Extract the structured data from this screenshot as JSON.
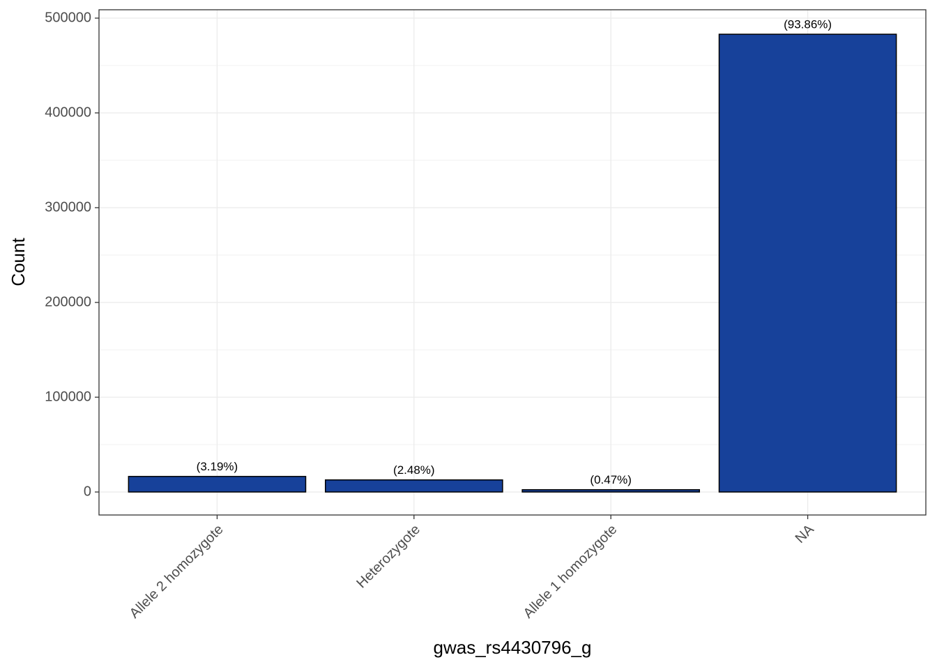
{
  "chart_data": {
    "type": "bar",
    "x_label": "gwas_rs4430796_g",
    "y_label": "Count",
    "categories": [
      "Allele 2 homozygote",
      "Heterozygote",
      "Allele 1 homozygote",
      "NA"
    ],
    "values": [
      16420,
      12760,
      2420,
      483000
    ],
    "labels": [
      "(3.19%)",
      "(2.48%)",
      "(0.47%)",
      "(93.86%)"
    ],
    "color": "#17419a",
    "ylim": [
      -24265,
      508824
    ],
    "yticks": [
      0,
      100000,
      200000,
      300000,
      400000,
      500000
    ],
    "grid": true
  }
}
